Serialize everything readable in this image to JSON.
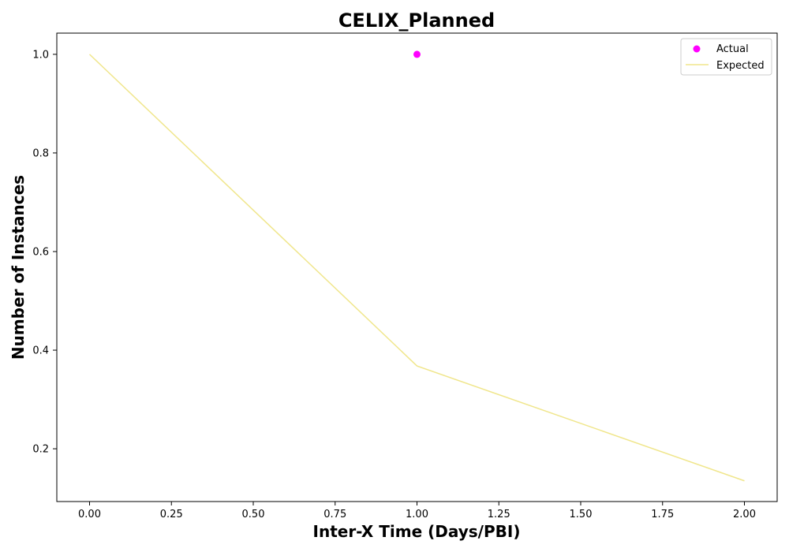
{
  "chart_data": {
    "type": "line",
    "title": "CELIX_Planned",
    "xlabel": "Inter-X Time (Days/PBI)",
    "ylabel": "Number of Instances",
    "xlim": [
      -0.1,
      2.1
    ],
    "ylim": [
      0.093,
      1.043
    ],
    "x_ticks": [
      0.0,
      0.25,
      0.5,
      0.75,
      1.0,
      1.25,
      1.5,
      1.75,
      2.0
    ],
    "x_tick_labels": [
      "0.00",
      "0.25",
      "0.50",
      "0.75",
      "1.00",
      "1.25",
      "1.50",
      "1.75",
      "2.00"
    ],
    "y_ticks": [
      0.2,
      0.4,
      0.6,
      0.8,
      1.0
    ],
    "y_tick_labels": [
      "0.2",
      "0.4",
      "0.6",
      "0.8",
      "1.0"
    ],
    "grid": false,
    "legend_position": "top-right",
    "series": [
      {
        "name": "Actual",
        "kind": "scatter",
        "color": "#ff00ff",
        "points": [
          {
            "x": 1.0,
            "y": 1.0
          }
        ]
      },
      {
        "name": "Expected",
        "kind": "line",
        "color": "#f0e68c",
        "points": [
          {
            "x": 0.0,
            "y": 1.0
          },
          {
            "x": 1.0,
            "y": 0.368
          },
          {
            "x": 2.0,
            "y": 0.135
          }
        ]
      }
    ]
  }
}
